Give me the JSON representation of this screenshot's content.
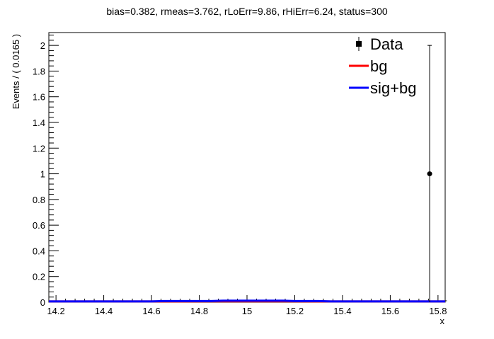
{
  "chart_data": {
    "type": "scatter",
    "title": "bias=0.382, rmeas=3.762, rLoErr=9.86, rHiErr=6.24, status=300",
    "xlabel": "x",
    "ylabel": "Events / ( 0.0165 )",
    "xlim": [
      14.17,
      15.83
    ],
    "ylim": [
      0,
      2.1
    ],
    "x_ticks": [
      "14.2",
      "14.4",
      "14.6",
      "14.8",
      "15",
      "15.2",
      "15.4",
      "15.6",
      "15.8"
    ],
    "y_ticks": [
      "0",
      "0.2",
      "0.4",
      "0.6",
      "0.8",
      "1",
      "1.2",
      "1.4",
      "1.6",
      "1.8",
      "2"
    ],
    "grid": false,
    "legend_position": "top-right",
    "series": [
      {
        "name": "Data",
        "kind": "points",
        "color": "#000000",
        "points": [
          {
            "x": 15.765,
            "y": 1,
            "yerr_low": 1,
            "yerr_high": 1
          }
        ]
      },
      {
        "name": "bg",
        "kind": "line",
        "color": "#ff0000",
        "x": [
          14.17,
          14.6,
          14.85,
          15.0,
          15.15,
          15.3,
          15.5,
          15.83
        ],
        "y": [
          0.006,
          0.006,
          0.007,
          0.007,
          0.007,
          0.006,
          0.006,
          0.006
        ]
      },
      {
        "name": "sig+bg",
        "kind": "line",
        "color": "#0000ff",
        "x": [
          14.17,
          14.6,
          14.65,
          14.85,
          14.9,
          15.15,
          15.2,
          15.3,
          15.35,
          15.83
        ],
        "y": [
          0.006,
          0.006,
          0.009,
          0.009,
          0.012,
          0.012,
          0.009,
          0.009,
          0.006,
          0.006
        ]
      }
    ]
  }
}
